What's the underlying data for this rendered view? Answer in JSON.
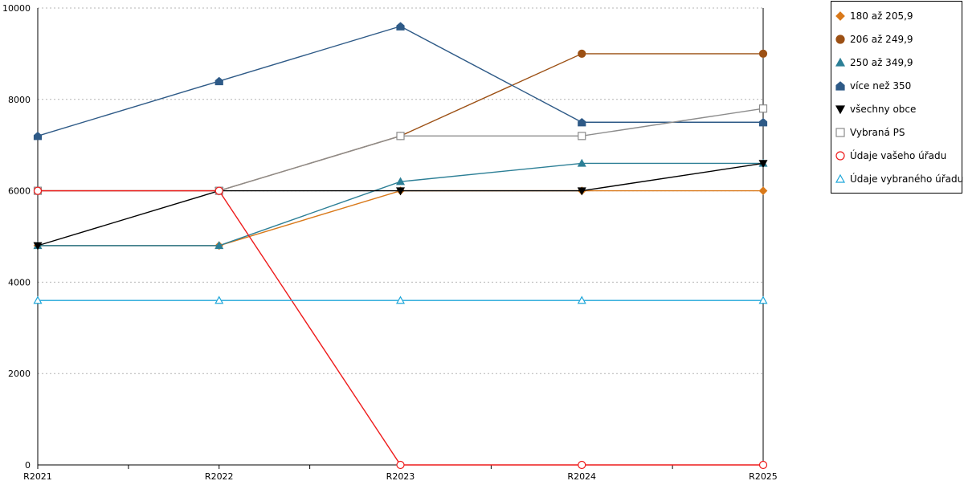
{
  "chart_data": {
    "type": "line",
    "categories": [
      "R2021",
      "R2022",
      "R2023",
      "R2024",
      "R2025"
    ],
    "ylim": [
      0,
      10000
    ],
    "yticks": [
      0,
      2000,
      4000,
      6000,
      8000,
      10000
    ],
    "grid": "horizontal dotted",
    "legend_position": "top-right",
    "series": [
      {
        "name": "180 až 205,9",
        "color": "#d9791a",
        "marker": "diamond",
        "filled": true,
        "values": [
          4800,
          4800,
          6000,
          6000,
          6000
        ]
      },
      {
        "name": "206 až 249,9",
        "color": "#9c5014",
        "marker": "circle",
        "filled": true,
        "values": [
          6000,
          6000,
          7200,
          9000,
          9000
        ]
      },
      {
        "name": "250 až 349,9",
        "color": "#2c7f96",
        "marker": "triangle-up",
        "filled": true,
        "values": [
          4800,
          4800,
          6200,
          6600,
          6600
        ]
      },
      {
        "name": "více než 350",
        "color": "#2e5a87",
        "marker": "pentagon",
        "filled": true,
        "values": [
          7200,
          8400,
          9600,
          7500,
          7500
        ]
      },
      {
        "name": "všechny obce",
        "color": "#000000",
        "marker": "triangle-down",
        "filled": true,
        "values": [
          4800,
          6000,
          6000,
          6000,
          6600
        ]
      },
      {
        "name": "Vybraná PS",
        "color": "#8c8c8c",
        "marker": "square",
        "filled": false,
        "values": [
          6000,
          6000,
          7200,
          7200,
          7800
        ]
      },
      {
        "name": "Údaje vašeho úřadu",
        "color": "#ee1c1c",
        "marker": "circle",
        "filled": false,
        "values": [
          6000,
          6000,
          0,
          0,
          0
        ]
      },
      {
        "name": "Údaje vybraného úřadu",
        "color": "#1ea6d9",
        "marker": "triangle-up",
        "filled": false,
        "values": [
          3600,
          3600,
          3600,
          3600,
          3600
        ]
      }
    ]
  }
}
